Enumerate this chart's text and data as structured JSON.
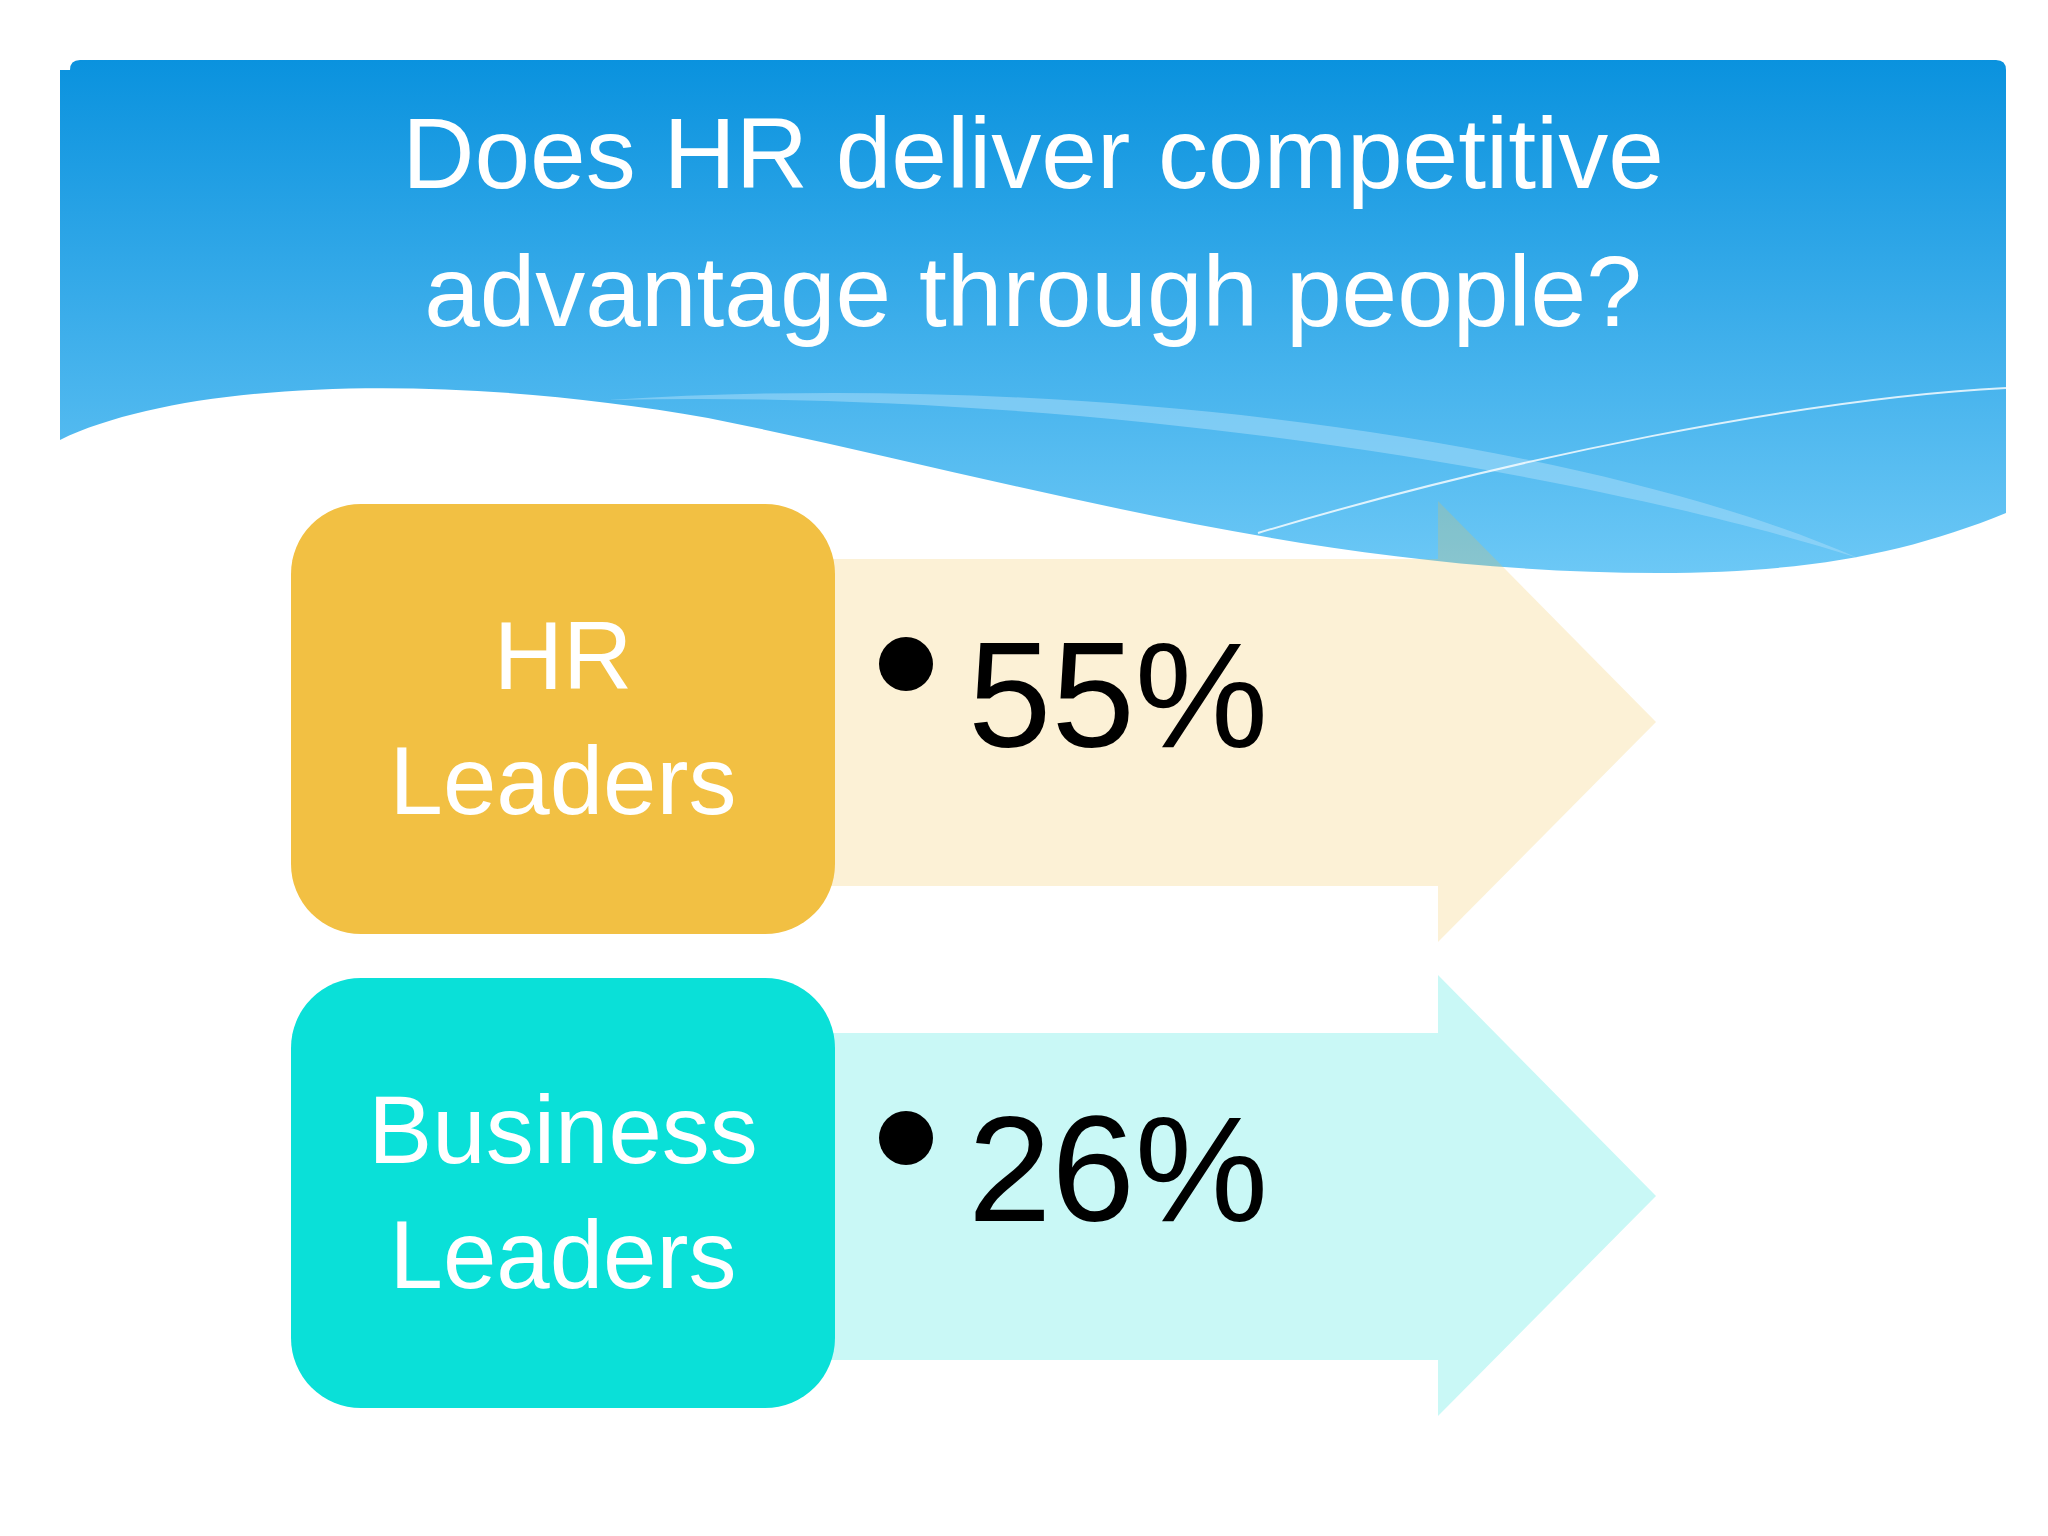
{
  "chart_data": {
    "type": "other",
    "title": "Does HR deliver competitive advantage through people?",
    "categories": [
      "HR Leaders",
      "Business Leaders"
    ],
    "values": [
      55,
      26
    ],
    "value_labels": [
      "55%",
      "26%"
    ],
    "colors": [
      "#f2c043",
      "#0ae0d8"
    ]
  }
}
